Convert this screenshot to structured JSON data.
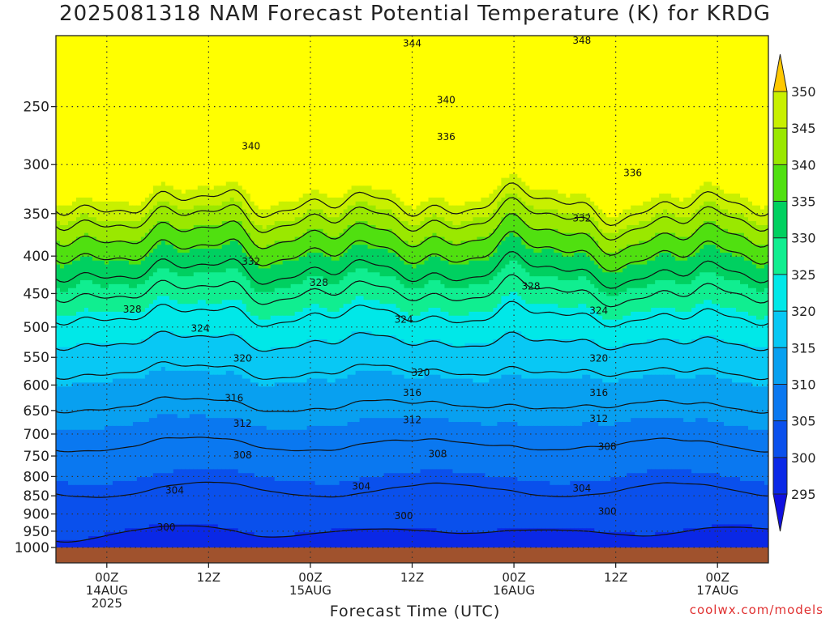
{
  "title": "2025081318 NAM Forecast Potential Temperature (K) for KRDG",
  "credit": "coolwx.com/models",
  "chart_data": {
    "type": "contour",
    "title": "2025081318 NAM Forecast Potential Temperature (K) for KRDG",
    "xlabel": "Forecast Time (UTC)",
    "ylabel": "",
    "units": "K",
    "x_ticks": [
      {
        "hour": 6,
        "label": [
          "00Z",
          "14AUG",
          "2025"
        ]
      },
      {
        "hour": 18,
        "label": [
          "12Z"
        ]
      },
      {
        "hour": 30,
        "label": [
          "00Z",
          "15AUG"
        ]
      },
      {
        "hour": 42,
        "label": [
          "12Z"
        ]
      },
      {
        "hour": 54,
        "label": [
          "00Z",
          "16AUG"
        ]
      },
      {
        "hour": 66,
        "label": [
          "12Z"
        ]
      },
      {
        "hour": 78,
        "label": [
          "00Z",
          "17AUG"
        ]
      }
    ],
    "xlim": [
      0,
      84
    ],
    "y_ticks": [
      250,
      300,
      350,
      400,
      450,
      500,
      550,
      600,
      650,
      700,
      750,
      800,
      850,
      900,
      950,
      1000
    ],
    "ylim": [
      1000,
      200
    ],
    "y_scale": "log-pressure",
    "grid": true,
    "colorbar_levels": [
      295,
      300,
      305,
      310,
      315,
      320,
      325,
      330,
      335,
      340,
      345,
      350
    ],
    "fill_colors": [
      "#1010e0",
      "#0a28e6",
      "#0a50ec",
      "#0a78f0",
      "#08a0f0",
      "#08c8f4",
      "#00e8e8",
      "#10ee90",
      "#00d060",
      "#50e010",
      "#9ae800",
      "#c8f000",
      "#ffff00",
      "#ffc800"
    ],
    "contour_levels": [
      300,
      304,
      308,
      312,
      316,
      320,
      324,
      328,
      332,
      336,
      340,
      344,
      348
    ],
    "contour_labels": [
      {
        "value": 344,
        "hour": 42,
        "pressure": 205
      },
      {
        "value": 348,
        "hour": 62,
        "pressure": 203
      },
      {
        "value": 340,
        "hour": 46,
        "pressure": 245
      },
      {
        "value": 340,
        "hour": 23,
        "pressure": 283
      },
      {
        "value": 336,
        "hour": 46,
        "pressure": 275
      },
      {
        "value": 336,
        "hour": 68,
        "pressure": 308
      },
      {
        "value": 332,
        "hour": 62,
        "pressure": 355
      },
      {
        "value": 332,
        "hour": 23,
        "pressure": 407
      },
      {
        "value": 328,
        "hour": 31,
        "pressure": 435
      },
      {
        "value": 328,
        "hour": 9,
        "pressure": 473
      },
      {
        "value": 328,
        "hour": 56,
        "pressure": 440
      },
      {
        "value": 324,
        "hour": 17,
        "pressure": 502
      },
      {
        "value": 324,
        "hour": 41,
        "pressure": 488
      },
      {
        "value": 324,
        "hour": 64,
        "pressure": 475
      },
      {
        "value": 320,
        "hour": 22,
        "pressure": 552
      },
      {
        "value": 320,
        "hour": 43,
        "pressure": 577
      },
      {
        "value": 320,
        "hour": 64,
        "pressure": 552
      },
      {
        "value": 316,
        "hour": 21,
        "pressure": 625
      },
      {
        "value": 316,
        "hour": 42,
        "pressure": 615
      },
      {
        "value": 316,
        "hour": 64,
        "pressure": 615
      },
      {
        "value": 312,
        "hour": 22,
        "pressure": 677
      },
      {
        "value": 312,
        "hour": 42,
        "pressure": 670
      },
      {
        "value": 312,
        "hour": 64,
        "pressure": 667
      },
      {
        "value": 308,
        "hour": 22,
        "pressure": 748
      },
      {
        "value": 308,
        "hour": 45,
        "pressure": 745
      },
      {
        "value": 308,
        "hour": 65,
        "pressure": 728
      },
      {
        "value": 304,
        "hour": 14,
        "pressure": 836
      },
      {
        "value": 304,
        "hour": 36,
        "pressure": 825
      },
      {
        "value": 304,
        "hour": 62,
        "pressure": 830
      },
      {
        "value": 300,
        "hour": 13,
        "pressure": 938
      },
      {
        "value": 300,
        "hour": 41,
        "pressure": 906
      },
      {
        "value": 300,
        "hour": 65,
        "pressure": 893
      }
    ],
    "surface": {
      "pressure": 1000,
      "color": "#a0522d"
    }
  }
}
